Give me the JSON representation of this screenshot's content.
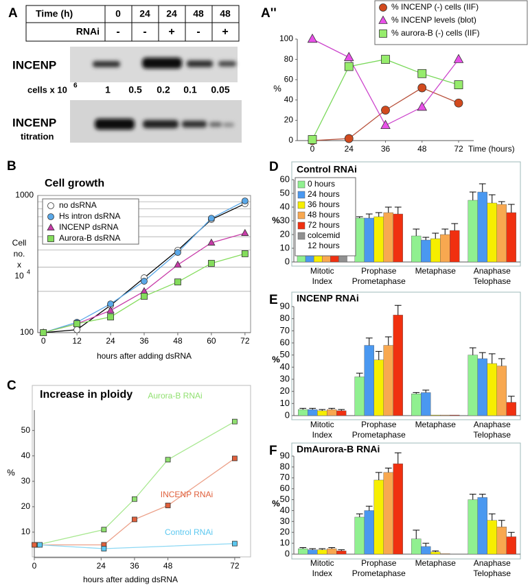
{
  "panel_a": {
    "label": "A",
    "table": {
      "header": [
        "Time (h)",
        "0",
        "24",
        "24",
        "48",
        "48"
      ],
      "rnai": [
        "RNAi",
        "-",
        "-",
        "+",
        "-",
        "+"
      ]
    },
    "blot1_label": "INCENP",
    "cells_label": "cells x 10",
    "cells_exp": "6",
    "cells": [
      "1",
      "0.5",
      "0.2",
      "0.1",
      "0.05"
    ],
    "blot2_label": "INCENP",
    "blot2_sub": "titration"
  },
  "chart_data": [
    {
      "panel": "A''",
      "type": "line",
      "categories": [
        "0",
        "24",
        "36",
        "48",
        "72"
      ],
      "xlabel": "Time (hours)",
      "ylabel": "%",
      "ylim": [
        0,
        100
      ],
      "yticks": [
        0,
        20,
        40,
        60,
        80,
        100
      ],
      "legend": "upper right",
      "series": [
        {
          "name": "% INCENP (-) cells (IIF)",
          "color": "#d24a1e",
          "line_color": "#b8503a",
          "marker": "circle",
          "values": [
            0,
            2,
            30,
            52,
            37
          ]
        },
        {
          "name": "% INCENP levels (blot)",
          "color": "#e850e8",
          "line_color": "#cc44cc",
          "marker": "triangle",
          "values": [
            100,
            82,
            15,
            33,
            80
          ]
        },
        {
          "name": "% aurora-B (-) cells (IIF)",
          "color": "#96ec6c",
          "line_color": "#78d858",
          "marker": "square",
          "values": [
            1,
            73,
            80,
            66,
            55
          ]
        }
      ]
    },
    {
      "panel": "B",
      "type": "line",
      "title": "Cell growth",
      "x": [
        0,
        12,
        24,
        36,
        48,
        60,
        72
      ],
      "xlim": [
        -2,
        74
      ],
      "xticks": [
        0,
        12,
        24,
        36,
        48,
        60,
        72
      ],
      "xlabel": "hours after adding dsRNA",
      "ylabel": [
        "Cell",
        "no.",
        "x",
        "10"
      ],
      "ylabel_exp": "4",
      "log_y": true,
      "ylim": [
        100,
        1000
      ],
      "yticks": [
        100,
        1000
      ],
      "ygrid": [
        200,
        300,
        400,
        500,
        600,
        700,
        800,
        900
      ],
      "legend": "upper left",
      "series": [
        {
          "name": "no dsRNA",
          "color": "#ffffff",
          "line_color": "#000000",
          "marker": "circle",
          "values": [
            100,
            105,
            158,
            251,
            398,
            668,
            870
          ]
        },
        {
          "name": "Hs intron dsRNA",
          "color": "#5aa8e8",
          "line_color": "#5aa8e8",
          "marker": "circle",
          "values": [
            100,
            119,
            162,
            237,
            384,
            682,
            912
          ]
        },
        {
          "name": "INCENP dsRNA",
          "color": "#c83ca8",
          "line_color": "#c83ca8",
          "marker": "triangle",
          "values": [
            100,
            116,
            145,
            200,
            312,
            452,
            531
          ]
        },
        {
          "name": "Aurora-B dsRNA",
          "color": "#84dc5c",
          "line_color": "#84dc5c",
          "marker": "square",
          "values": [
            100,
            116,
            130,
            184,
            234,
            320,
            376
          ]
        }
      ]
    },
    {
      "panel": "C",
      "type": "line",
      "title": "Increase in ploidy",
      "xlim": [
        0,
        74
      ],
      "xticks": [
        0,
        24,
        36,
        48,
        72
      ],
      "xlabel": "hours after adding dsRNA",
      "ylabel": "%",
      "ylim": [
        0,
        58
      ],
      "yticks": [
        10,
        20,
        30,
        40,
        50
      ],
      "series": [
        {
          "name": "Aurora-B RNAi",
          "color": "#90e070",
          "line_color": "#a8e890",
          "marker": "square",
          "x": [
            1,
            25,
            36,
            48,
            72
          ],
          "values": [
            5,
            11,
            23,
            38.5,
            53.5
          ]
        },
        {
          "name": "INCENP RNAi",
          "color": "#e0603c",
          "line_color": "#eca088",
          "marker": "square",
          "x": [
            0,
            25,
            36,
            48,
            72
          ],
          "values": [
            5,
            5,
            15,
            20.5,
            39
          ]
        },
        {
          "name": "Control RNAi",
          "color": "#5cc8f0",
          "line_color": "#8cd8f4",
          "marker": "square",
          "x": [
            2,
            25,
            72
          ],
          "values": [
            5,
            3.5,
            5.5
          ]
        }
      ]
    },
    {
      "panel": "D",
      "type": "bar",
      "title": "Control RNAi",
      "ylabel": "%",
      "ylim": [
        0,
        60
      ],
      "yticks": [
        0,
        10,
        20,
        30,
        40,
        50,
        60
      ],
      "legend": "upper left",
      "categories": [
        [
          "Mitotic",
          "Index"
        ],
        [
          "Prophase",
          "Prometaphase"
        ],
        [
          "Metaphase"
        ],
        [
          "Anaphase",
          "Telophase"
        ]
      ],
      "series": [
        {
          "name": "0 hours",
          "color": "#90f090",
          "values": [
            5,
            32,
            19,
            45
          ],
          "errors": [
            1,
            1,
            5,
            6
          ]
        },
        {
          "name": "24 hours",
          "color": "#4a98f0",
          "values": [
            5,
            32,
            16,
            51
          ],
          "errors": [
            1,
            3,
            2,
            6
          ]
        },
        {
          "name": "36 hours",
          "color": "#f6ee00",
          "values": [
            5,
            33,
            17,
            43
          ],
          "errors": [
            1,
            3,
            4,
            6
          ]
        },
        {
          "name": "48 hours",
          "color": "#f8a850",
          "values": [
            5,
            36,
            20,
            42
          ],
          "errors": [
            1,
            4,
            4,
            2
          ]
        },
        {
          "name": "72 hours",
          "color": "#f03010",
          "values": [
            6,
            35,
            23,
            36
          ],
          "errors": [
            1,
            5,
            5,
            6
          ]
        },
        {
          "name": [
            "colcemid",
            "12 hours"
          ],
          "color": "#909090",
          "values": [
            6,
            null,
            null,
            null
          ],
          "errors": [
            1,
            null,
            null,
            null
          ]
        }
      ]
    },
    {
      "panel": "E",
      "type": "bar",
      "title": "INCENP RNAi",
      "ylabel": "%",
      "ylim": [
        0,
        90
      ],
      "yticks": [
        0,
        10,
        20,
        30,
        40,
        50,
        60,
        70,
        80,
        90
      ],
      "categories": [
        [
          "Mitotic",
          "Index"
        ],
        [
          "Prophase",
          "Prometaphase"
        ],
        [
          "Metaphase"
        ],
        [
          "Anaphase",
          "Telophase"
        ]
      ],
      "series": [
        {
          "name": "0 hours",
          "color": "#90f090",
          "values": [
            5,
            32,
            18,
            50
          ],
          "errors": [
            1,
            3,
            1,
            6
          ]
        },
        {
          "name": "24 hours",
          "color": "#4a98f0",
          "values": [
            5,
            58,
            19,
            47
          ],
          "errors": [
            1,
            6,
            2,
            5
          ]
        },
        {
          "name": "36 hours",
          "color": "#f6ee00",
          "values": [
            4,
            46,
            0.5,
            43
          ],
          "errors": [
            1,
            7,
            null,
            8
          ]
        },
        {
          "name": "48 hours",
          "color": "#f8a850",
          "values": [
            5,
            58,
            0.5,
            41
          ],
          "errors": [
            1,
            7,
            null,
            6
          ]
        },
        {
          "name": "72 hours",
          "color": "#f03010",
          "values": [
            4,
            83,
            0.5,
            11
          ],
          "errors": [
            1,
            8,
            null,
            5
          ]
        }
      ]
    },
    {
      "panel": "F",
      "type": "bar",
      "title": "DmAurora-B RNAi",
      "ylabel": "%",
      "ylim": [
        0,
        90
      ],
      "yticks": [
        0,
        10,
        20,
        30,
        40,
        50,
        60,
        70,
        80,
        90
      ],
      "categories": [
        [
          "Mitotic",
          "Index"
        ],
        [
          "Prophase",
          "Prometaphase"
        ],
        [
          "Metaphase"
        ],
        [
          "Anaphase",
          "Telophase"
        ]
      ],
      "series": [
        {
          "name": "0 hours",
          "color": "#90f090",
          "values": [
            5,
            34,
            14,
            50
          ],
          "errors": [
            1,
            3,
            8,
            5
          ]
        },
        {
          "name": "24 hours",
          "color": "#4a98f0",
          "values": [
            4,
            40,
            7,
            52
          ],
          "errors": [
            1,
            4,
            3,
            3
          ]
        },
        {
          "name": "36 hours",
          "color": "#f6ee00",
          "values": [
            4,
            68,
            2,
            31
          ],
          "errors": [
            1,
            7,
            1,
            6
          ]
        },
        {
          "name": "48 hours",
          "color": "#f8a850",
          "values": [
            5,
            75,
            0.5,
            25
          ],
          "errors": [
            1,
            4,
            null,
            6
          ]
        },
        {
          "name": "72 hours",
          "color": "#f03010",
          "values": [
            3,
            83,
            0,
            16
          ],
          "errors": [
            1,
            10,
            null,
            4
          ]
        }
      ]
    }
  ]
}
